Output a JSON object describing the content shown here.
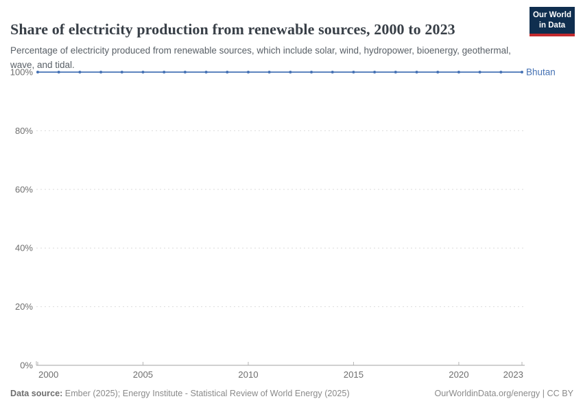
{
  "header": {
    "title": "Share of electricity production from renewable sources, 2000 to 2023",
    "subtitle": "Percentage of electricity produced from renewable sources, which include solar, wind, hydropower, bioenergy, geothermal, wave, and tidal.",
    "logo": {
      "line1": "Our World",
      "line2": "in Data",
      "bg": "#0f2e4f",
      "stripe": "#c32a2e"
    }
  },
  "chart_data": {
    "type": "line",
    "title": "Share of electricity production from renewable sources, 2000 to 2023",
    "xlabel": "",
    "ylabel": "",
    "xlim": [
      2000,
      2023
    ],
    "ylim": [
      0,
      100
    ],
    "grid": "horizontal-dashed",
    "legend_position": "end-of-line-label",
    "x": [
      2000,
      2001,
      2002,
      2003,
      2004,
      2005,
      2006,
      2007,
      2008,
      2009,
      2010,
      2011,
      2012,
      2013,
      2014,
      2015,
      2016,
      2017,
      2018,
      2019,
      2020,
      2021,
      2022,
      2023
    ],
    "series": [
      {
        "name": "Bhutan",
        "color": "#4672b4",
        "values": [
          100,
          100,
          100,
          100,
          100,
          100,
          100,
          100,
          100,
          100,
          100,
          100,
          100,
          100,
          100,
          100,
          100,
          100,
          100,
          100,
          100,
          100,
          100,
          100
        ]
      }
    ],
    "y_ticks": [
      {
        "value": 0,
        "label": "0%"
      },
      {
        "value": 20,
        "label": "20%"
      },
      {
        "value": 40,
        "label": "40%"
      },
      {
        "value": 60,
        "label": "60%"
      },
      {
        "value": 80,
        "label": "80%"
      },
      {
        "value": 100,
        "label": "100%"
      }
    ],
    "x_ticks": [
      {
        "value": 2000,
        "label": "2000"
      },
      {
        "value": 2005,
        "label": "2005"
      },
      {
        "value": 2010,
        "label": "2010"
      },
      {
        "value": 2015,
        "label": "2015"
      },
      {
        "value": 2020,
        "label": "2020"
      },
      {
        "value": 2023,
        "label": "2023"
      }
    ],
    "colors": {
      "grid": "#dcdcdc",
      "axis": "#a1a1a1",
      "tick": "#b5b5b5",
      "tick_label": "#6e6e6e"
    }
  },
  "footer": {
    "datasource_label": "Data source:",
    "datasource_value": " Ember (2025); Energy Institute - Statistical Review of World Energy (2025)",
    "credit": "OurWorldinData.org/energy | CC BY"
  }
}
